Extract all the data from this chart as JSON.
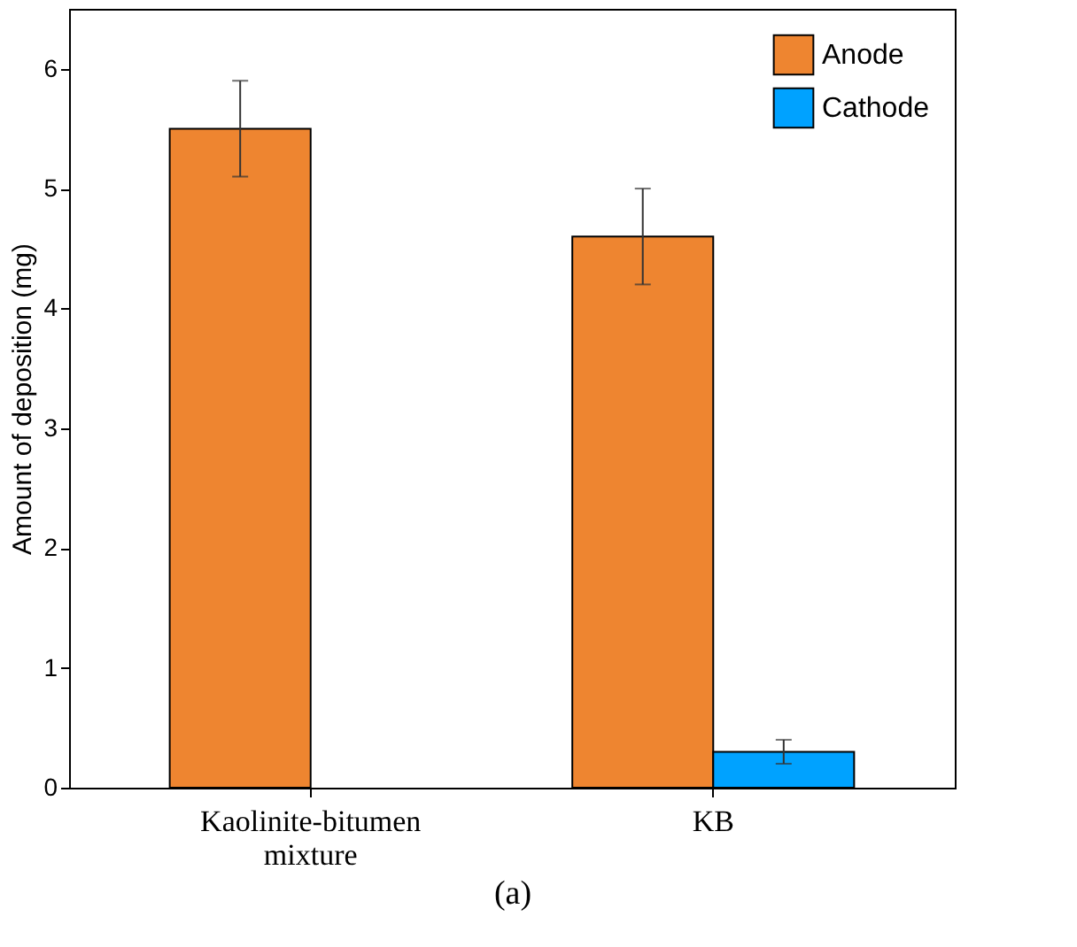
{
  "chart_data": {
    "type": "bar",
    "categories": [
      "Kaolinite-bitumen mixture",
      "KB"
    ],
    "series": [
      {
        "name": "Anode",
        "color": "#ee8530",
        "values": [
          5.5,
          4.6
        ],
        "errors": [
          0.4,
          0.4
        ]
      },
      {
        "name": "Cathode",
        "color": "#00a2ff",
        "values": [
          null,
          0.3
        ],
        "errors": [
          null,
          0.1
        ]
      }
    ],
    "ylabel": "Amount of deposition (mg)",
    "xlabel": "(a)",
    "ylim": [
      0,
      6.5
    ],
    "yticks": [
      0,
      1,
      2,
      3,
      4,
      5,
      6
    ],
    "grid": false,
    "legend": "top right"
  }
}
